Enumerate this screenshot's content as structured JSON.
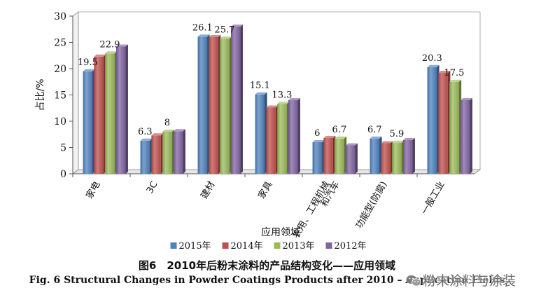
{
  "chart_data": {
    "type": "bar",
    "title": "",
    "xlabel": "应用领域",
    "ylabel": "占比/%",
    "ylim": [
      0,
      30
    ],
    "yticks": [
      "0",
      "5",
      "10",
      "15",
      "20",
      "25",
      "30"
    ],
    "categories": [
      "家电",
      "3C",
      "建材",
      "家具",
      "农用、工程机械\n和汽车",
      "功能型(防腐)",
      "一般工业"
    ],
    "series": [
      {
        "name": "2015年",
        "color": "#4f81bd",
        "values": [
          19.5,
          6.3,
          26.1,
          15.1,
          6.0,
          6.7,
          20.3
        ]
      },
      {
        "name": "2014年",
        "color": "#c0504d",
        "values": [
          22.3,
          7.3,
          26.0,
          12.6,
          6.8,
          5.8,
          19.2
        ]
      },
      {
        "name": "2013年",
        "color": "#9bbb59",
        "values": [
          22.9,
          8.0,
          25.7,
          13.3,
          6.7,
          5.9,
          17.5
        ]
      },
      {
        "name": "2012年",
        "color": "#8064a2",
        "values": [
          24.2,
          8.1,
          28.0,
          14.0,
          5.4,
          6.4,
          14.0
        ]
      }
    ],
    "data_labels": [
      {
        "category": 0,
        "series": 0,
        "text": "19.5"
      },
      {
        "category": 0,
        "series": 2,
        "text": "22.9"
      },
      {
        "category": 1,
        "series": 0,
        "text": "6.3"
      },
      {
        "category": 1,
        "series": 2,
        "text": "8"
      },
      {
        "category": 2,
        "series": 0,
        "text": "26.1"
      },
      {
        "category": 2,
        "series": 2,
        "text": "25.7"
      },
      {
        "category": 3,
        "series": 0,
        "text": "15.1"
      },
      {
        "category": 3,
        "series": 2,
        "text": "13.3"
      },
      {
        "category": 4,
        "series": 0,
        "text": "6"
      },
      {
        "category": 4,
        "series": 2,
        "text": "6.7"
      },
      {
        "category": 5,
        "series": 0,
        "text": "6.7"
      },
      {
        "category": 5,
        "series": 2,
        "text": "5.9"
      },
      {
        "category": 6,
        "series": 0,
        "text": "20.3"
      },
      {
        "category": 6,
        "series": 2,
        "text": "17.5"
      }
    ],
    "grid": false,
    "legend_position": "bottom"
  },
  "caption_cn": "图6　2010年后粉末涂料的产品结构变化——应用领域",
  "caption_en": "Fig. 6 Structural Changes in Powder Coatings Products after 2010 – Application Fields",
  "watermark": "粉末涂料与涂装"
}
